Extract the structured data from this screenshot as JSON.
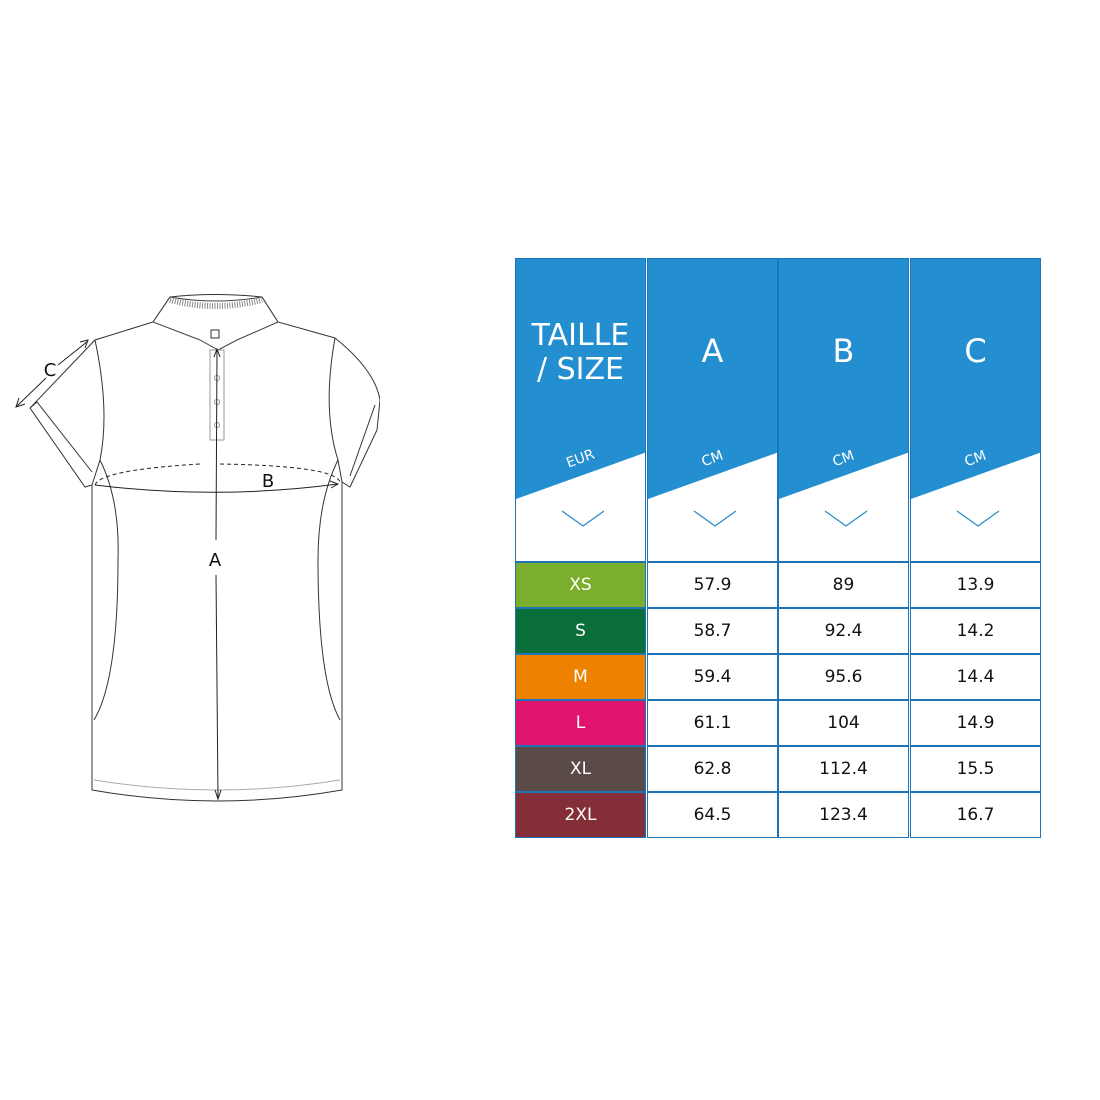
{
  "diagram": {
    "labels": {
      "a": "A",
      "b": "B",
      "c": "C"
    }
  },
  "table": {
    "header_color": "#238fd0",
    "border_color": "#1f74b8",
    "columns": [
      {
        "title_line1": "TAILLE",
        "title_line2": "/ SIZE",
        "unit": "EUR"
      },
      {
        "title_line1": "A",
        "title_line2": "",
        "unit": "CM"
      },
      {
        "title_line1": "B",
        "title_line2": "",
        "unit": "CM"
      },
      {
        "title_line1": "C",
        "title_line2": "",
        "unit": "CM"
      }
    ],
    "rows": [
      {
        "size": "XS",
        "color": "#7aae2c",
        "a": "57.9",
        "b": "89",
        "c": "13.9"
      },
      {
        "size": "S",
        "color": "#0a6e3a",
        "a": "58.7",
        "b": "92.4",
        "c": "14.2"
      },
      {
        "size": "M",
        "color": "#ef8100",
        "a": "59.4",
        "b": "95.6",
        "c": "14.4"
      },
      {
        "size": "L",
        "color": "#e0136f",
        "a": "61.1",
        "b": "104",
        "c": "14.9"
      },
      {
        "size": "XL",
        "color": "#5a4a48",
        "a": "62.8",
        "b": "112.4",
        "c": "15.5"
      },
      {
        "size": "2XL",
        "color": "#842f37",
        "a": "64.5",
        "b": "123.4",
        "c": "16.7"
      }
    ]
  }
}
